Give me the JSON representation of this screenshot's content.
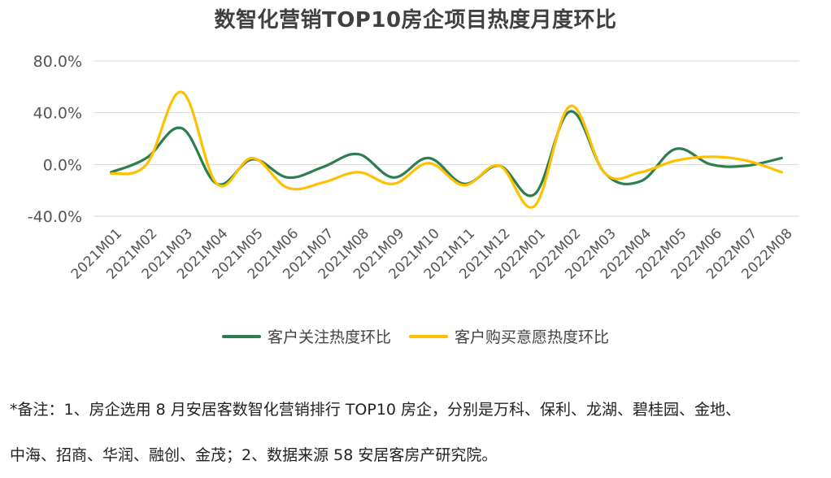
{
  "chart_data": {
    "type": "line",
    "title": "数智化营销TOP10房企项目热度月度环比",
    "categories": [
      "2021M01",
      "2021M02",
      "2021M03",
      "2021M04",
      "2021M05",
      "2021M06",
      "2021M07",
      "2021M08",
      "2021M09",
      "2021M10",
      "2021M11",
      "2021M12",
      "2022M01",
      "2022M02",
      "2022M03",
      "2022M04",
      "2022M05",
      "2022M06",
      "2022M07",
      "2022M08"
    ],
    "y_ticks": [
      "80.0%",
      "40.0%",
      "0.0%",
      "-40.0%"
    ],
    "ylim": [
      -40,
      80
    ],
    "y_unit": "percent",
    "grid": true,
    "legend_position": "bottom",
    "series": [
      {
        "name": "客户关注热度环比",
        "color": "#2e7d4f",
        "values": [
          -6,
          5,
          28,
          -15,
          4,
          -10,
          -2,
          8,
          -10,
          5,
          -15,
          -1,
          -23,
          41,
          -7,
          -13,
          12,
          0,
          -1,
          5
        ]
      },
      {
        "name": "客户购买意愿热度环比",
        "color": "#ffc000",
        "values": [
          -7,
          0,
          56,
          -15,
          5,
          -18,
          -14,
          -6,
          -15,
          1,
          -16,
          -1,
          -32,
          45,
          -7,
          -6,
          3,
          6,
          3,
          -6
        ]
      }
    ]
  },
  "note": {
    "line1": "*备注：1、房企选用 8 月安居客数智化营销排行 TOP10 房企，分别是万科、保利、龙湖、碧桂园、金地、",
    "line2": "中海、招商、华润、融创、金茂；2、数据来源 58 安居客房产研究院。"
  }
}
